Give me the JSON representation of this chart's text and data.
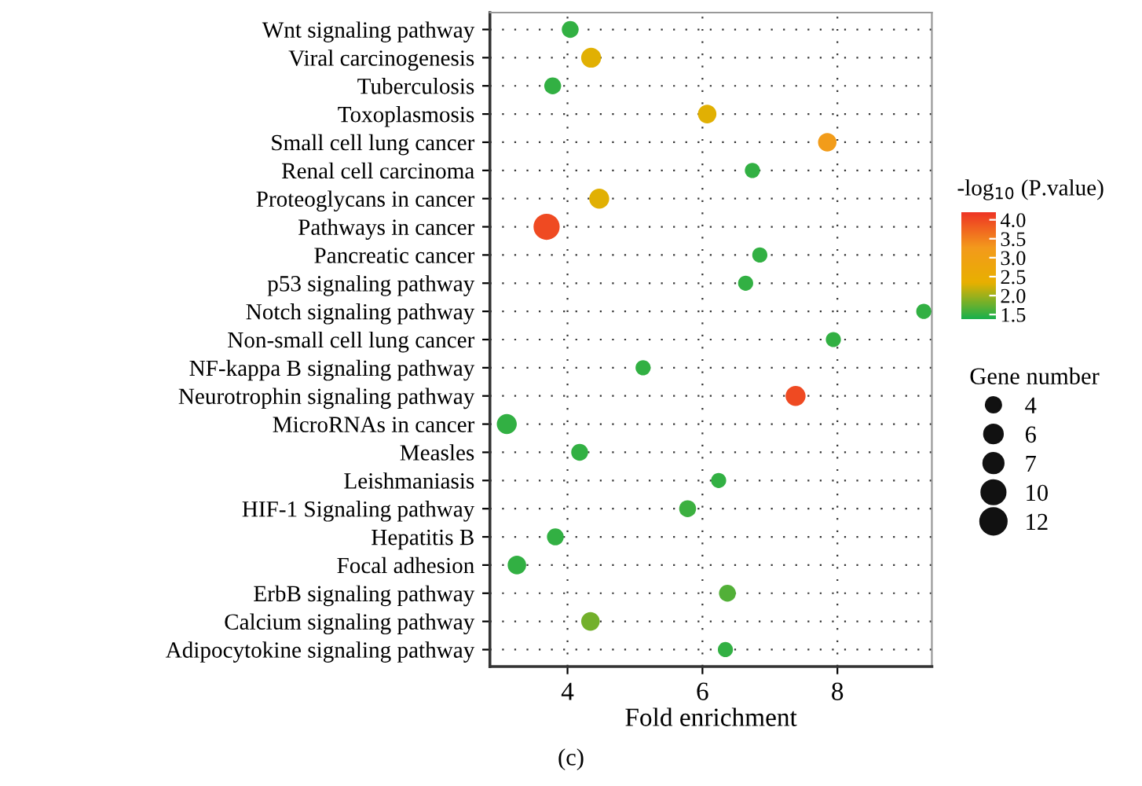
{
  "chart_data": {
    "type": "bubble",
    "orientation": "horizontal",
    "xlabel": "Fold enrichment",
    "clabel": "-log$_{10}$ (P.value)",
    "legend_title": "Gene number",
    "categories": [
      "Wnt signaling pathway",
      "Viral carcinogenesis",
      "Tuberculosis",
      "Toxoplasmosis",
      "Small cell lung cancer",
      "Renal cell carcinoma",
      "Proteoglycans in cancer",
      "Pathways in cancer",
      "Pancreatic cancer",
      "p53 signaling pathway",
      "Notch signaling pathway",
      "Non-small cell lung cancer",
      "NF-kappa B signaling pathway",
      "Neurotrophin signaling pathway",
      "MicroRNAs in cancer",
      "Measles",
      "Leishmaniasis",
      "HIF-1 Signaling pathway",
      "Hepatitis B",
      "Focal adhesion",
      "ErbB signaling pathway",
      "Calcium signaling pathway",
      "Adipocytokine signaling pathway"
    ],
    "values": [
      4.04,
      4.35,
      3.78,
      6.07,
      7.85,
      6.74,
      4.47,
      3.69,
      6.85,
      6.64,
      9.28,
      7.94,
      5.12,
      7.38,
      3.1,
      4.18,
      6.24,
      5.78,
      3.82,
      3.25,
      6.37,
      4.34,
      6.34
    ],
    "sizes": [
      5,
      7,
      5,
      6,
      6,
      4,
      7,
      12,
      4,
      4,
      4,
      4,
      4,
      7,
      7,
      5,
      4,
      5,
      5,
      6,
      5,
      6,
      4
    ],
    "size_legend": [
      4,
      6,
      7,
      10,
      12
    ],
    "cvalues": [
      1.5,
      2.3,
      1.5,
      2.3,
      3.2,
      1.5,
      2.3,
      4.0,
      1.5,
      1.5,
      1.5,
      1.5,
      1.5,
      4.0,
      1.5,
      1.5,
      1.5,
      1.55,
      1.5,
      1.5,
      1.65,
      1.8,
      1.5
    ],
    "clim": [
      1.4,
      4.2
    ],
    "cticks": [
      {
        "value": 1.5,
        "label": "1.5"
      },
      {
        "value": 2.0,
        "label": "2.0"
      },
      {
        "value": 2.5,
        "label": "2.5"
      },
      {
        "value": 3.0,
        "label": "3.0"
      },
      {
        "value": 3.5,
        "label": "3.5"
      },
      {
        "value": 4.0,
        "label": "4.0"
      }
    ],
    "xlim": [
      2.85,
      9.4
    ],
    "xticks": [
      4,
      6,
      8
    ],
    "grid": true,
    "annotations": [
      "(c)"
    ]
  }
}
